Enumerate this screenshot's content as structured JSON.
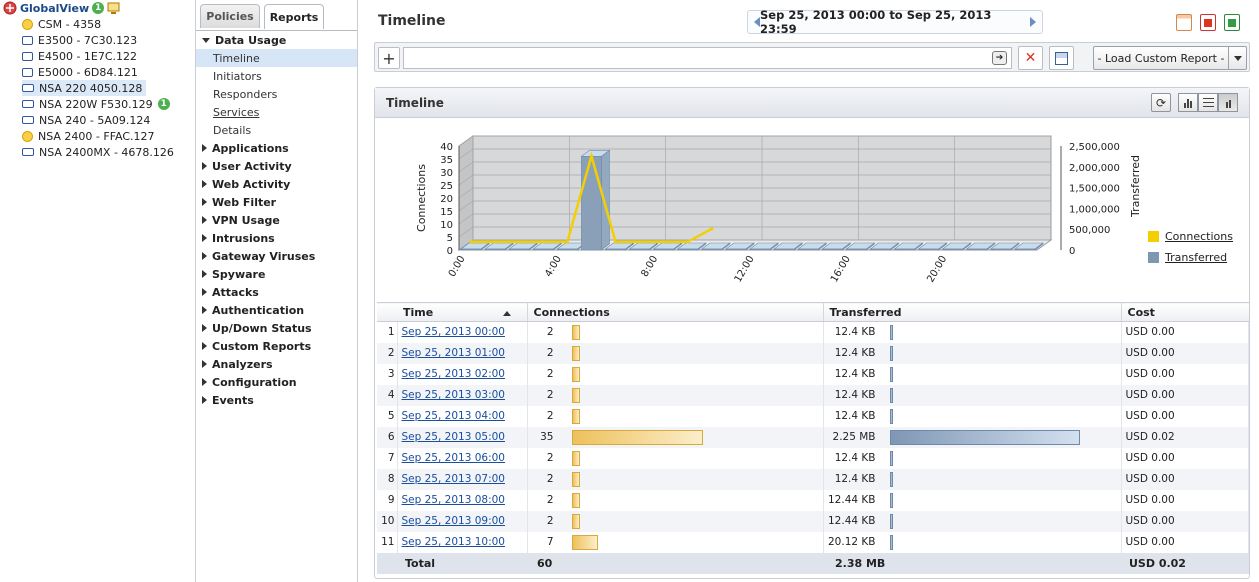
{
  "tree": {
    "root_label": "GlobalView",
    "root_badge": "1",
    "items": [
      {
        "label": "CSM - 4358",
        "icon": "warning-device-icon"
      },
      {
        "label": "E3500 - 7C30.123",
        "icon": "device-pair-icon"
      },
      {
        "label": "E4500 - 1E7C.122",
        "icon": "device-pair-icon"
      },
      {
        "label": "E5000 - 6D84.121",
        "icon": "device-pair-icon"
      },
      {
        "label": "NSA 220 4050.128",
        "icon": "device-icon",
        "selected": true
      },
      {
        "label": "NSA 220W F530.129",
        "icon": "device-icon",
        "badge": "1"
      },
      {
        "label": "NSA 240 - 5A09.124",
        "icon": "device-icon"
      },
      {
        "label": "NSA 2400 - FFAC.127",
        "icon": "warning-device-icon"
      },
      {
        "label": "NSA 2400MX - 4678.126",
        "icon": "device-icon"
      }
    ]
  },
  "tabs": {
    "policies": "Policies",
    "reports": "Reports"
  },
  "nav": {
    "expanded_group": "Data Usage",
    "sub_items": [
      "Timeline",
      "Initiators",
      "Responders",
      "Services",
      "Details"
    ],
    "groups": [
      "Applications",
      "User Activity",
      "Web Activity",
      "Web Filter",
      "VPN Usage",
      "Intrusions",
      "Gateway Viruses",
      "Spyware",
      "Attacks",
      "Authentication",
      "Up/Down Status",
      "Custom Reports",
      "Analyzers",
      "Configuration",
      "Events"
    ]
  },
  "header": {
    "title": "Timeline",
    "date_range": "Sep 25, 2013 00:00 to Sep 25, 2013 23:59"
  },
  "filter": {
    "add_label": "+",
    "input_value": "",
    "go_label": "➔",
    "clear_label": "✕",
    "load_label": "- Load Custom Report -"
  },
  "panel": {
    "title": "Timeline",
    "refresh_label": "⟳"
  },
  "chart_data": {
    "type": "bar+line",
    "x_tick_labels": [
      "0:00",
      "4:00",
      "8:00",
      "12:00",
      "16:00",
      "20:00"
    ],
    "ylabel_left": "Connections",
    "ylabel_right": "Transferred",
    "left_ticks": [
      "0",
      "5",
      "10",
      "15",
      "20",
      "25",
      "30",
      "35",
      "40"
    ],
    "right_ticks": [
      "0",
      "500,000",
      "1,000,000",
      "1,500,000",
      "2,000,000",
      "2,500,000"
    ],
    "ylim_left": [
      0,
      40
    ],
    "ylim_right": [
      0,
      2500000
    ],
    "hours": [
      0,
      1,
      2,
      3,
      4,
      5,
      6,
      7,
      8,
      9,
      10,
      11,
      12,
      13,
      14,
      15,
      16,
      17,
      18,
      19,
      20,
      21,
      22,
      23
    ],
    "series": [
      {
        "name": "Connections",
        "values": [
          2,
          2,
          2,
          2,
          2,
          35,
          2,
          2,
          2,
          2,
          7,
          0,
          0,
          0,
          0,
          0,
          0,
          0,
          0,
          0,
          0,
          0,
          0,
          0
        ]
      },
      {
        "name": "Transferred",
        "values": [
          12400,
          12400,
          12400,
          12400,
          12400,
          2250000,
          12400,
          12400,
          12440,
          12440,
          20120,
          0,
          0,
          0,
          0,
          0,
          0,
          0,
          0,
          0,
          0,
          0,
          0,
          0
        ]
      }
    ],
    "colors": {
      "connections": "#f3cf00",
      "transferred": "#7f98b2"
    },
    "legend_position": "right",
    "grid": true
  },
  "table": {
    "headers": {
      "time": "Time",
      "connections": "Connections",
      "transferred": "Transferred",
      "cost": "Cost"
    },
    "rows": [
      {
        "idx": "1",
        "time": "Sep 25, 2013 00:00",
        "connections": "2",
        "transferred": "12.4 KB",
        "cost": "USD 0.00",
        "c": 2,
        "t": 12.4
      },
      {
        "idx": "2",
        "time": "Sep 25, 2013 01:00",
        "connections": "2",
        "transferred": "12.4 KB",
        "cost": "USD 0.00",
        "c": 2,
        "t": 12.4
      },
      {
        "idx": "3",
        "time": "Sep 25, 2013 02:00",
        "connections": "2",
        "transferred": "12.4 KB",
        "cost": "USD 0.00",
        "c": 2,
        "t": 12.4
      },
      {
        "idx": "4",
        "time": "Sep 25, 2013 03:00",
        "connections": "2",
        "transferred": "12.4 KB",
        "cost": "USD 0.00",
        "c": 2,
        "t": 12.4
      },
      {
        "idx": "5",
        "time": "Sep 25, 2013 04:00",
        "connections": "2",
        "transferred": "12.4 KB",
        "cost": "USD 0.00",
        "c": 2,
        "t": 12.4
      },
      {
        "idx": "6",
        "time": "Sep 25, 2013 05:00",
        "connections": "35",
        "transferred": "2.25 MB",
        "cost": "USD 0.02",
        "c": 35,
        "t": 2250
      },
      {
        "idx": "7",
        "time": "Sep 25, 2013 06:00",
        "connections": "2",
        "transferred": "12.4 KB",
        "cost": "USD 0.00",
        "c": 2,
        "t": 12.4
      },
      {
        "idx": "8",
        "time": "Sep 25, 2013 07:00",
        "connections": "2",
        "transferred": "12.4 KB",
        "cost": "USD 0.00",
        "c": 2,
        "t": 12.4
      },
      {
        "idx": "9",
        "time": "Sep 25, 2013 08:00",
        "connections": "2",
        "transferred": "12.44 KB",
        "cost": "USD 0.00",
        "c": 2,
        "t": 12.44
      },
      {
        "idx": "10",
        "time": "Sep 25, 2013 09:00",
        "connections": "2",
        "transferred": "12.44 KB",
        "cost": "USD 0.00",
        "c": 2,
        "t": 12.44
      },
      {
        "idx": "11",
        "time": "Sep 25, 2013 10:00",
        "connections": "7",
        "transferred": "20.12 KB",
        "cost": "USD 0.00",
        "c": 7,
        "t": 20.12
      }
    ],
    "total": {
      "label": "Total",
      "connections": "60",
      "transferred": "2.38 MB",
      "cost": "USD 0.02"
    }
  }
}
